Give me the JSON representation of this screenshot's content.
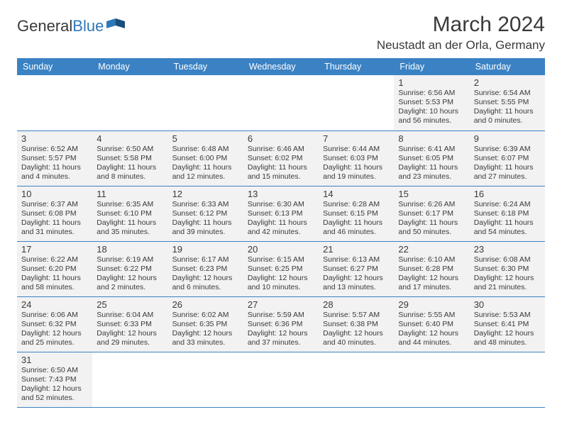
{
  "logo": {
    "text1": "General",
    "text2": "Blue"
  },
  "title": "March 2024",
  "location": "Neustadt an der Orla, Germany",
  "colors": {
    "header_bg": "#3b82c4",
    "header_fg": "#ffffff",
    "cell_bg": "#f2f2f2",
    "border": "#3b82c4",
    "text": "#3a3a3a"
  },
  "weekdays": [
    "Sunday",
    "Monday",
    "Tuesday",
    "Wednesday",
    "Thursday",
    "Friday",
    "Saturday"
  ],
  "weeks": [
    [
      null,
      null,
      null,
      null,
      null,
      {
        "n": "1",
        "sr": "Sunrise: 6:56 AM",
        "ss": "Sunset: 5:53 PM",
        "d1": "Daylight: 10 hours",
        "d2": "and 56 minutes."
      },
      {
        "n": "2",
        "sr": "Sunrise: 6:54 AM",
        "ss": "Sunset: 5:55 PM",
        "d1": "Daylight: 11 hours",
        "d2": "and 0 minutes."
      }
    ],
    [
      {
        "n": "3",
        "sr": "Sunrise: 6:52 AM",
        "ss": "Sunset: 5:57 PM",
        "d1": "Daylight: 11 hours",
        "d2": "and 4 minutes."
      },
      {
        "n": "4",
        "sr": "Sunrise: 6:50 AM",
        "ss": "Sunset: 5:58 PM",
        "d1": "Daylight: 11 hours",
        "d2": "and 8 minutes."
      },
      {
        "n": "5",
        "sr": "Sunrise: 6:48 AM",
        "ss": "Sunset: 6:00 PM",
        "d1": "Daylight: 11 hours",
        "d2": "and 12 minutes."
      },
      {
        "n": "6",
        "sr": "Sunrise: 6:46 AM",
        "ss": "Sunset: 6:02 PM",
        "d1": "Daylight: 11 hours",
        "d2": "and 15 minutes."
      },
      {
        "n": "7",
        "sr": "Sunrise: 6:44 AM",
        "ss": "Sunset: 6:03 PM",
        "d1": "Daylight: 11 hours",
        "d2": "and 19 minutes."
      },
      {
        "n": "8",
        "sr": "Sunrise: 6:41 AM",
        "ss": "Sunset: 6:05 PM",
        "d1": "Daylight: 11 hours",
        "d2": "and 23 minutes."
      },
      {
        "n": "9",
        "sr": "Sunrise: 6:39 AM",
        "ss": "Sunset: 6:07 PM",
        "d1": "Daylight: 11 hours",
        "d2": "and 27 minutes."
      }
    ],
    [
      {
        "n": "10",
        "sr": "Sunrise: 6:37 AM",
        "ss": "Sunset: 6:08 PM",
        "d1": "Daylight: 11 hours",
        "d2": "and 31 minutes."
      },
      {
        "n": "11",
        "sr": "Sunrise: 6:35 AM",
        "ss": "Sunset: 6:10 PM",
        "d1": "Daylight: 11 hours",
        "d2": "and 35 minutes."
      },
      {
        "n": "12",
        "sr": "Sunrise: 6:33 AM",
        "ss": "Sunset: 6:12 PM",
        "d1": "Daylight: 11 hours",
        "d2": "and 39 minutes."
      },
      {
        "n": "13",
        "sr": "Sunrise: 6:30 AM",
        "ss": "Sunset: 6:13 PM",
        "d1": "Daylight: 11 hours",
        "d2": "and 42 minutes."
      },
      {
        "n": "14",
        "sr": "Sunrise: 6:28 AM",
        "ss": "Sunset: 6:15 PM",
        "d1": "Daylight: 11 hours",
        "d2": "and 46 minutes."
      },
      {
        "n": "15",
        "sr": "Sunrise: 6:26 AM",
        "ss": "Sunset: 6:17 PM",
        "d1": "Daylight: 11 hours",
        "d2": "and 50 minutes."
      },
      {
        "n": "16",
        "sr": "Sunrise: 6:24 AM",
        "ss": "Sunset: 6:18 PM",
        "d1": "Daylight: 11 hours",
        "d2": "and 54 minutes."
      }
    ],
    [
      {
        "n": "17",
        "sr": "Sunrise: 6:22 AM",
        "ss": "Sunset: 6:20 PM",
        "d1": "Daylight: 11 hours",
        "d2": "and 58 minutes."
      },
      {
        "n": "18",
        "sr": "Sunrise: 6:19 AM",
        "ss": "Sunset: 6:22 PM",
        "d1": "Daylight: 12 hours",
        "d2": "and 2 minutes."
      },
      {
        "n": "19",
        "sr": "Sunrise: 6:17 AM",
        "ss": "Sunset: 6:23 PM",
        "d1": "Daylight: 12 hours",
        "d2": "and 6 minutes."
      },
      {
        "n": "20",
        "sr": "Sunrise: 6:15 AM",
        "ss": "Sunset: 6:25 PM",
        "d1": "Daylight: 12 hours",
        "d2": "and 10 minutes."
      },
      {
        "n": "21",
        "sr": "Sunrise: 6:13 AM",
        "ss": "Sunset: 6:27 PM",
        "d1": "Daylight: 12 hours",
        "d2": "and 13 minutes."
      },
      {
        "n": "22",
        "sr": "Sunrise: 6:10 AM",
        "ss": "Sunset: 6:28 PM",
        "d1": "Daylight: 12 hours",
        "d2": "and 17 minutes."
      },
      {
        "n": "23",
        "sr": "Sunrise: 6:08 AM",
        "ss": "Sunset: 6:30 PM",
        "d1": "Daylight: 12 hours",
        "d2": "and 21 minutes."
      }
    ],
    [
      {
        "n": "24",
        "sr": "Sunrise: 6:06 AM",
        "ss": "Sunset: 6:32 PM",
        "d1": "Daylight: 12 hours",
        "d2": "and 25 minutes."
      },
      {
        "n": "25",
        "sr": "Sunrise: 6:04 AM",
        "ss": "Sunset: 6:33 PM",
        "d1": "Daylight: 12 hours",
        "d2": "and 29 minutes."
      },
      {
        "n": "26",
        "sr": "Sunrise: 6:02 AM",
        "ss": "Sunset: 6:35 PM",
        "d1": "Daylight: 12 hours",
        "d2": "and 33 minutes."
      },
      {
        "n": "27",
        "sr": "Sunrise: 5:59 AM",
        "ss": "Sunset: 6:36 PM",
        "d1": "Daylight: 12 hours",
        "d2": "and 37 minutes."
      },
      {
        "n": "28",
        "sr": "Sunrise: 5:57 AM",
        "ss": "Sunset: 6:38 PM",
        "d1": "Daylight: 12 hours",
        "d2": "and 40 minutes."
      },
      {
        "n": "29",
        "sr": "Sunrise: 5:55 AM",
        "ss": "Sunset: 6:40 PM",
        "d1": "Daylight: 12 hours",
        "d2": "and 44 minutes."
      },
      {
        "n": "30",
        "sr": "Sunrise: 5:53 AM",
        "ss": "Sunset: 6:41 PM",
        "d1": "Daylight: 12 hours",
        "d2": "and 48 minutes."
      }
    ],
    [
      {
        "n": "31",
        "sr": "Sunrise: 6:50 AM",
        "ss": "Sunset: 7:43 PM",
        "d1": "Daylight: 12 hours",
        "d2": "and 52 minutes."
      },
      null,
      null,
      null,
      null,
      null,
      null
    ]
  ]
}
